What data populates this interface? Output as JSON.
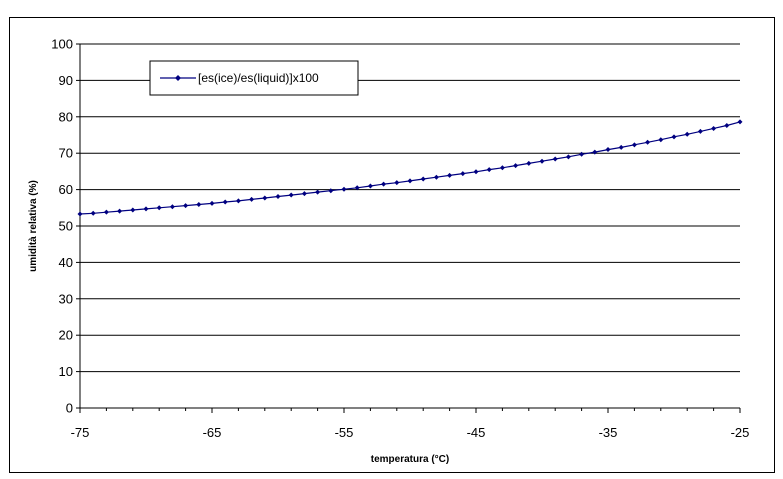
{
  "chart_data": {
    "type": "line",
    "xlabel": "temperatura (°C)",
    "ylabel": "umidità relativa (%)",
    "xlim": [
      -75,
      -25
    ],
    "ylim": [
      0,
      100
    ],
    "x_ticks": [
      "-75",
      "-65",
      "-55",
      "-45",
      "-35",
      "-25"
    ],
    "y_ticks": [
      "0",
      "10",
      "20",
      "30",
      "40",
      "50",
      "60",
      "70",
      "80",
      "90",
      "100"
    ],
    "grid": "horizontal",
    "legend_position": "top-left",
    "colors": {
      "series": "#000080",
      "grid": "#000000"
    },
    "series": [
      {
        "name": "[es(ice)/es(liquid)]x100",
        "x": [
          -75,
          -74,
          -73,
          -72,
          -71,
          -70,
          -69,
          -68,
          -67,
          -66,
          -65,
          -64,
          -63,
          -62,
          -61,
          -60,
          -59,
          -58,
          -57,
          -56,
          -55,
          -54,
          -53,
          -52,
          -51,
          -50,
          -49,
          -48,
          -47,
          -46,
          -45,
          -44,
          -43,
          -42,
          -41,
          -40,
          -39,
          -38,
          -37,
          -36,
          -35,
          -34,
          -33,
          -32,
          -31,
          -30,
          -29,
          -28,
          -27,
          -26,
          -25
        ],
        "values": [
          53.3,
          53.5,
          53.8,
          54.1,
          54.4,
          54.7,
          55.0,
          55.3,
          55.6,
          55.9,
          56.2,
          56.6,
          56.9,
          57.3,
          57.7,
          58.1,
          58.5,
          58.9,
          59.3,
          59.7,
          60.1,
          60.5,
          61.0,
          61.5,
          61.9,
          62.4,
          62.9,
          63.4,
          63.9,
          64.4,
          64.9,
          65.5,
          66.0,
          66.6,
          67.2,
          67.8,
          68.4,
          69.0,
          69.7,
          70.3,
          71.0,
          71.6,
          72.3,
          73.0,
          73.7,
          74.5,
          75.2,
          76.0,
          76.8,
          77.6,
          78.6
        ]
      }
    ]
  }
}
